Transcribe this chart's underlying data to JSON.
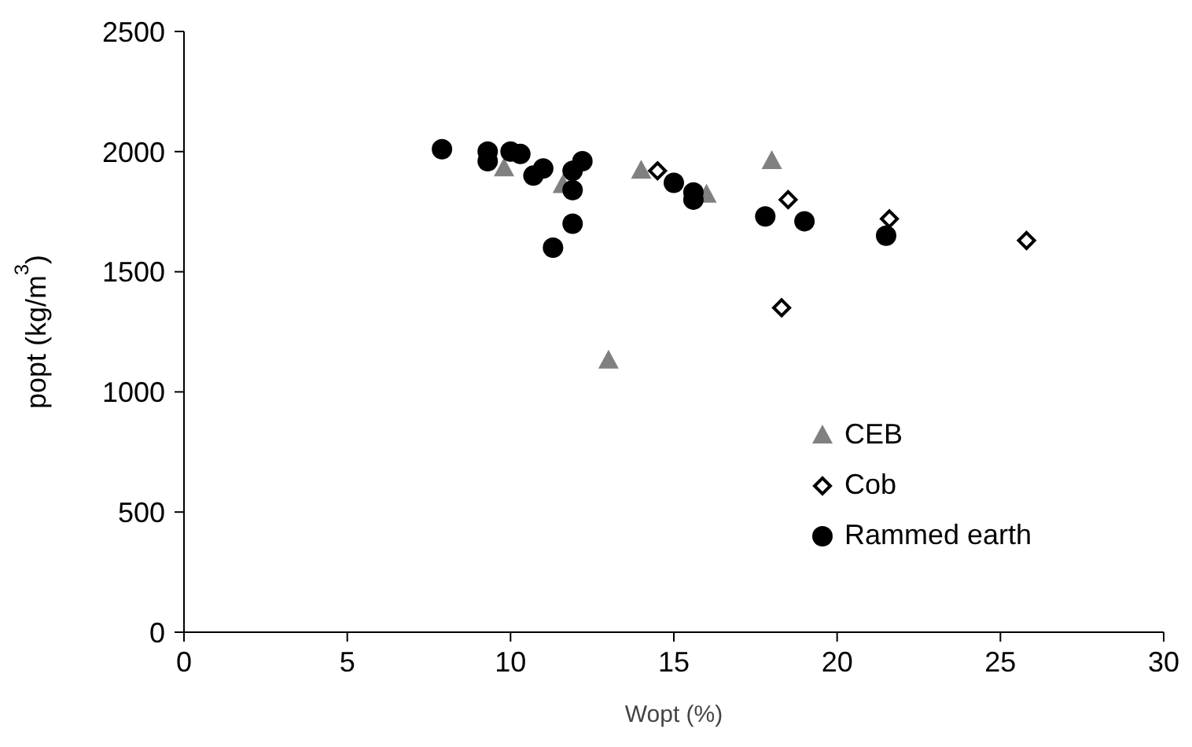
{
  "chart_data": {
    "type": "scatter",
    "xlabel": "Wopt (%)",
    "ylabel": "popt (kg/m$^{3}$)",
    "xlim": [
      0,
      30
    ],
    "xticks": [
      0,
      5,
      10,
      15,
      20,
      25,
      30
    ],
    "ylim": [
      0,
      2500
    ],
    "yticks": [
      0,
      500,
      1000,
      1500,
      2000,
      2500
    ],
    "grid": false,
    "legend": "bottom right",
    "series": [
      {
        "name": "CEB",
        "color": "#808080",
        "marker": "triangle",
        "x": [
          9.8,
          11.6,
          14.0,
          13.0,
          16.0,
          18.0
        ],
        "values": [
          1930,
          1860,
          1920,
          1130,
          1820,
          1960
        ]
      },
      {
        "name": "Cob",
        "color": "#000000",
        "marker": "diamond",
        "x": [
          14.5,
          18.5,
          21.6,
          25.8,
          18.3
        ],
        "values": [
          1920,
          1800,
          1720,
          1630,
          1350
        ]
      },
      {
        "name": "Rammed earth",
        "color": "#000000",
        "marker": "circle",
        "x": [
          7.9,
          9.3,
          9.3,
          10.0,
          10.3,
          10.7,
          11.0,
          12.2,
          11.9,
          11.9,
          11.9,
          11.3,
          15.0,
          15.6,
          15.6,
          17.8,
          19.0,
          21.5
        ],
        "values": [
          2010,
          2000,
          1960,
          2000,
          1990,
          1900,
          1930,
          1960,
          1920,
          1840,
          1700,
          1600,
          1870,
          1830,
          1800,
          1730,
          1710,
          1650
        ]
      }
    ]
  }
}
